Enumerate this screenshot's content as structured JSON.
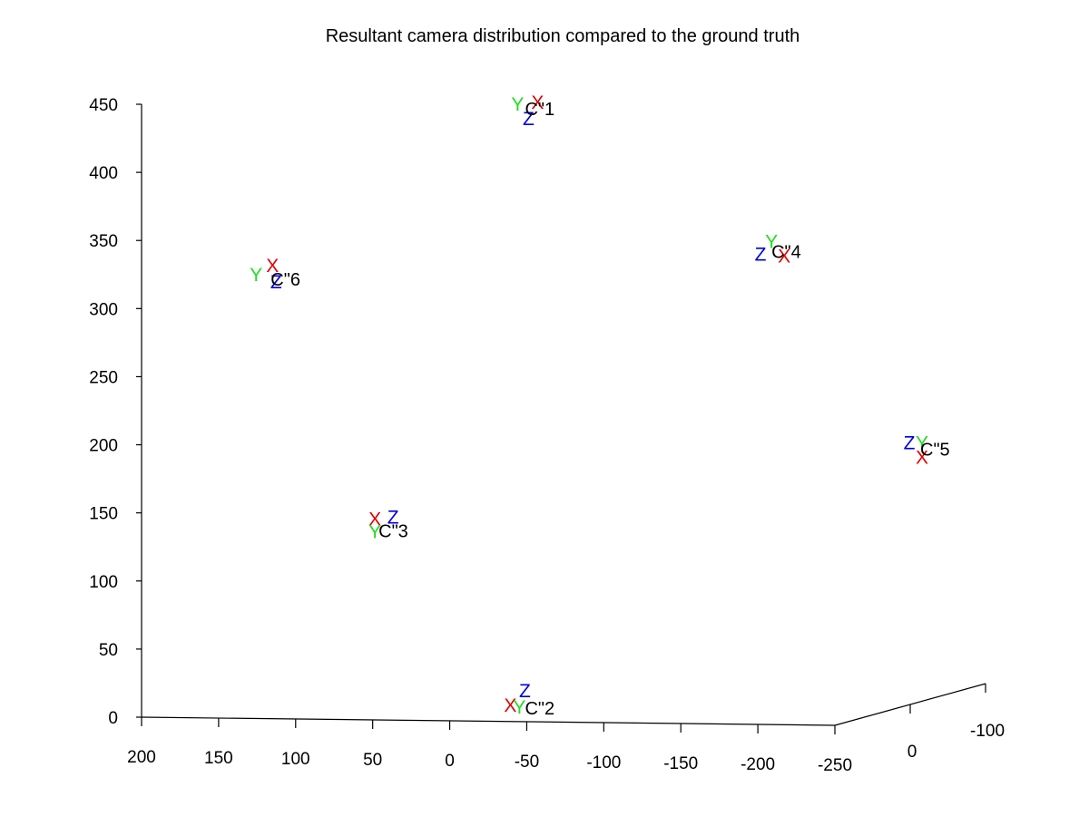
{
  "colors": {
    "x_axis": "#e00000",
    "y_axis": "#22dd22",
    "z_axis": "#0000e0",
    "text": "#000000"
  },
  "chart_data": {
    "type": "scatter",
    "title": "Resultant camera distribution compared to the ground truth",
    "projection": "3d",
    "grid": false,
    "axes": {
      "x": {
        "ticks": [
          "200",
          "150",
          "100",
          "50",
          "0",
          "-50",
          "-100",
          "-150",
          "-200",
          "-250"
        ],
        "range": [
          200,
          -250
        ]
      },
      "y": {
        "ticks": [
          "0",
          "-100"
        ],
        "range": [
          100,
          -100
        ]
      },
      "z": {
        "ticks": [
          "0",
          "50",
          "100",
          "150",
          "200",
          "250",
          "300",
          "350",
          "400",
          "450"
        ],
        "range": [
          0,
          450
        ]
      }
    },
    "cameras": [
      {
        "label": "C\"1",
        "x": -50,
        "y": 0,
        "z": 450,
        "frame": [
          "Y",
          "X",
          "Z"
        ]
      },
      {
        "label": "C\"2",
        "x": -50,
        "y": 0,
        "z": 10,
        "frame": [
          "X",
          "Y",
          "Z"
        ]
      },
      {
        "label": "C\"3",
        "x": 45,
        "y": 0,
        "z": 140,
        "frame": [
          "X",
          "Y",
          "Z"
        ]
      },
      {
        "label": "C\"4",
        "x": -210,
        "y": 0,
        "z": 345,
        "frame": [
          "Y",
          "X",
          "Z"
        ]
      },
      {
        "label": "C\"5",
        "x": -300,
        "y": 0,
        "z": 200,
        "frame": [
          "Z",
          "Y",
          "X"
        ]
      },
      {
        "label": "C\"6",
        "x": 115,
        "y": 0,
        "z": 325,
        "frame": [
          "Y",
          "X",
          "Z"
        ]
      }
    ]
  }
}
